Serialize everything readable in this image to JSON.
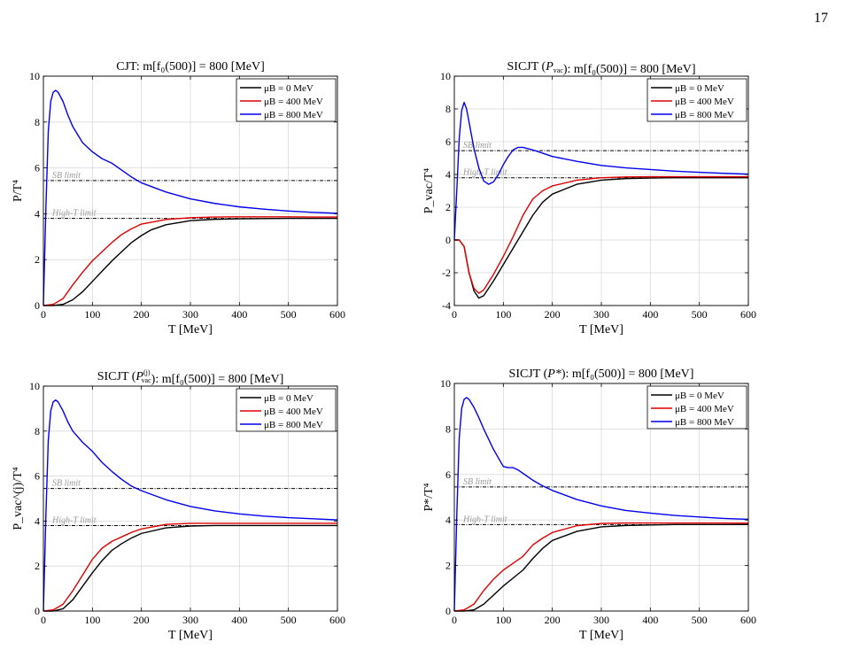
{
  "page": {
    "number": "17"
  },
  "colors": {
    "mu0": "#000000",
    "mu400": "#e00000",
    "mu800": "#0000ee",
    "limit": "#000000",
    "limit_label": "#999999",
    "grid": "#d9d9d9"
  },
  "reference_lines": {
    "sb_label": "SB limit",
    "sb_value": 5.45,
    "hight_label": "High-T limit",
    "hight_value": 3.8
  },
  "chart_data": [
    {
      "type": "line",
      "title": "CJT: m[f₀(500)] = 800 [MeV]",
      "xlabel": "T [MeV]",
      "ylabel": "P/T⁴",
      "xlim": [
        0,
        600
      ],
      "ylim": [
        0,
        10
      ],
      "xticks": [
        0,
        100,
        200,
        300,
        400,
        500,
        600
      ],
      "yticks": [
        0,
        2,
        4,
        6,
        8,
        10
      ],
      "ytick_labels": [
        "0",
        "2",
        "4",
        "6",
        "8",
        "10"
      ],
      "legend": "top-right",
      "series": [
        {
          "name": "μB = 0 MeV",
          "color": "#000000",
          "x": [
            0,
            20,
            40,
            60,
            80,
            100,
            120,
            140,
            160,
            180,
            200,
            220,
            250,
            300,
            350,
            400,
            450,
            500,
            550,
            600
          ],
          "y": [
            0,
            0,
            0.05,
            0.25,
            0.6,
            1.05,
            1.5,
            1.95,
            2.35,
            2.75,
            3.05,
            3.3,
            3.52,
            3.7,
            3.76,
            3.78,
            3.79,
            3.8,
            3.8,
            3.8
          ]
        },
        {
          "name": "μB = 400 MeV",
          "color": "#e00000",
          "x": [
            0,
            20,
            40,
            60,
            80,
            100,
            120,
            140,
            160,
            180,
            200,
            250,
            300,
            350,
            400,
            450,
            500,
            550,
            600
          ],
          "y": [
            0,
            0.05,
            0.3,
            0.9,
            1.45,
            1.95,
            2.35,
            2.75,
            3.1,
            3.35,
            3.55,
            3.75,
            3.83,
            3.86,
            3.87,
            3.87,
            3.87,
            3.86,
            3.86
          ]
        },
        {
          "name": "μB = 800 MeV",
          "color": "#0000ee",
          "x": [
            0,
            5,
            10,
            15,
            20,
            25,
            30,
            40,
            50,
            60,
            80,
            100,
            120,
            140,
            160,
            180,
            200,
            250,
            300,
            350,
            400,
            450,
            500,
            550,
            600
          ],
          "y": [
            0,
            4.2,
            7.6,
            8.9,
            9.3,
            9.38,
            9.3,
            8.9,
            8.3,
            7.8,
            7.1,
            6.7,
            6.4,
            6.2,
            5.9,
            5.6,
            5.35,
            4.95,
            4.65,
            4.45,
            4.3,
            4.2,
            4.12,
            4.06,
            4.02
          ]
        }
      ]
    },
    {
      "type": "line",
      "title": "SICJT (P_vac): m[f₀(500)] = 800 [MeV]",
      "xlabel": "T [MeV]",
      "ylabel": "P_vac/T⁴",
      "xlim": [
        0,
        600
      ],
      "ylim": [
        -4,
        10
      ],
      "xticks": [
        0,
        100,
        200,
        300,
        400,
        500,
        600
      ],
      "yticks": [
        -4,
        -2,
        0,
        2,
        4,
        6,
        8,
        10
      ],
      "ytick_labels": [
        "-4",
        "-2",
        "0",
        "2",
        "4",
        "6",
        "8",
        "10"
      ],
      "legend": "top-right",
      "series": [
        {
          "name": "μB = 0 MeV",
          "color": "#000000",
          "x": [
            0,
            10,
            20,
            30,
            40,
            50,
            60,
            80,
            100,
            120,
            140,
            160,
            180,
            200,
            250,
            300,
            350,
            400,
            450,
            500,
            550,
            600
          ],
          "y": [
            0,
            0,
            -0.4,
            -2.0,
            -3.1,
            -3.55,
            -3.4,
            -2.5,
            -1.5,
            -0.5,
            0.5,
            1.5,
            2.3,
            2.8,
            3.4,
            3.65,
            3.75,
            3.78,
            3.8,
            3.8,
            3.8,
            3.8
          ]
        },
        {
          "name": "μB = 400 MeV",
          "color": "#e00000",
          "x": [
            0,
            10,
            20,
            30,
            40,
            50,
            60,
            80,
            100,
            120,
            140,
            160,
            180,
            200,
            250,
            300,
            350,
            400,
            450,
            500,
            550,
            600
          ],
          "y": [
            0,
            0,
            -0.4,
            -2.0,
            -2.95,
            -3.25,
            -3.05,
            -2.1,
            -1.0,
            0.2,
            1.5,
            2.5,
            3.0,
            3.3,
            3.65,
            3.8,
            3.85,
            3.86,
            3.86,
            3.86,
            3.86,
            3.86
          ]
        },
        {
          "name": "μB = 800 MeV",
          "color": "#0000ee",
          "x": [
            0,
            5,
            10,
            15,
            20,
            25,
            30,
            35,
            40,
            50,
            60,
            70,
            80,
            90,
            100,
            110,
            120,
            130,
            140,
            160,
            180,
            200,
            250,
            300,
            350,
            400,
            450,
            500,
            550,
            600
          ],
          "y": [
            0,
            3.0,
            6.2,
            7.9,
            8.4,
            8.0,
            7.2,
            6.4,
            5.6,
            4.4,
            3.6,
            3.4,
            3.55,
            4.0,
            4.6,
            5.1,
            5.5,
            5.65,
            5.65,
            5.5,
            5.3,
            5.1,
            4.8,
            4.55,
            4.4,
            4.3,
            4.2,
            4.13,
            4.07,
            4.02
          ]
        }
      ]
    },
    {
      "type": "line",
      "title": "SICJT (P_vac^(j)): m[f₀(500)] = 800 [MeV]",
      "xlabel": "T [MeV]",
      "ylabel": "P_vac^(j)/T⁴",
      "xlim": [
        0,
        600
      ],
      "ylim": [
        0,
        10
      ],
      "xticks": [
        0,
        100,
        200,
        300,
        400,
        500,
        600
      ],
      "yticks": [
        0,
        2,
        4,
        6,
        8,
        10
      ],
      "ytick_labels": [
        "0",
        "2",
        "4",
        "6",
        "8",
        "10"
      ],
      "legend": "top-right",
      "series": [
        {
          "name": "μB = 0 MeV",
          "color": "#000000",
          "x": [
            0,
            20,
            40,
            60,
            80,
            100,
            120,
            140,
            160,
            180,
            200,
            250,
            300,
            350,
            400,
            450,
            500,
            550,
            600
          ],
          "y": [
            0,
            0,
            0.1,
            0.5,
            1.1,
            1.7,
            2.25,
            2.7,
            3.0,
            3.25,
            3.45,
            3.7,
            3.78,
            3.8,
            3.8,
            3.8,
            3.8,
            3.8,
            3.8
          ]
        },
        {
          "name": "μB = 400 MeV",
          "color": "#e00000",
          "x": [
            0,
            20,
            40,
            60,
            80,
            100,
            120,
            140,
            160,
            180,
            200,
            250,
            300,
            350,
            400,
            450,
            500,
            550,
            600
          ],
          "y": [
            0,
            0.05,
            0.3,
            0.9,
            1.6,
            2.3,
            2.8,
            3.1,
            3.3,
            3.5,
            3.65,
            3.85,
            3.9,
            3.9,
            3.9,
            3.9,
            3.9,
            3.9,
            3.9
          ]
        },
        {
          "name": "μB = 800 MeV",
          "color": "#0000ee",
          "x": [
            0,
            5,
            10,
            15,
            20,
            25,
            30,
            40,
            50,
            60,
            80,
            100,
            120,
            140,
            160,
            180,
            200,
            250,
            300,
            350,
            400,
            450,
            500,
            550,
            600
          ],
          "y": [
            0,
            4.2,
            7.6,
            8.9,
            9.3,
            9.38,
            9.3,
            8.9,
            8.4,
            8.0,
            7.5,
            7.1,
            6.6,
            6.2,
            5.85,
            5.55,
            5.35,
            4.95,
            4.65,
            4.45,
            4.32,
            4.22,
            4.15,
            4.1,
            4.05
          ]
        }
      ]
    },
    {
      "type": "line",
      "title": "SICJT (P*): m[f₀(500)] = 800 [MeV]",
      "xlabel": "T [MeV]",
      "ylabel": "P*/T⁴",
      "xlim": [
        0,
        600
      ],
      "ylim": [
        0,
        10
      ],
      "xticks": [
        0,
        100,
        200,
        300,
        400,
        500,
        600
      ],
      "yticks": [
        0,
        2,
        4,
        6,
        8,
        10
      ],
      "ytick_labels": [
        "0",
        "2",
        "4",
        "6",
        "8",
        "10"
      ],
      "legend": "top-right",
      "series": [
        {
          "name": "μB = 0 MeV",
          "color": "#000000",
          "x": [
            0,
            20,
            40,
            60,
            80,
            100,
            120,
            140,
            160,
            180,
            200,
            250,
            300,
            350,
            400,
            450,
            500,
            550,
            600
          ],
          "y": [
            0,
            0,
            0.05,
            0.3,
            0.7,
            1.1,
            1.45,
            1.8,
            2.3,
            2.75,
            3.1,
            3.5,
            3.7,
            3.76,
            3.78,
            3.8,
            3.8,
            3.8,
            3.8
          ]
        },
        {
          "name": "μB = 400 MeV",
          "color": "#e00000",
          "x": [
            0,
            20,
            40,
            60,
            80,
            100,
            120,
            140,
            160,
            180,
            200,
            250,
            300,
            350,
            400,
            450,
            500,
            550,
            600
          ],
          "y": [
            0,
            0.05,
            0.3,
            0.9,
            1.4,
            1.8,
            2.1,
            2.4,
            2.9,
            3.2,
            3.45,
            3.75,
            3.85,
            3.87,
            3.87,
            3.87,
            3.87,
            3.87,
            3.86
          ]
        },
        {
          "name": "μB = 800 MeV",
          "color": "#0000ee",
          "x": [
            0,
            5,
            10,
            15,
            20,
            25,
            30,
            40,
            50,
            60,
            80,
            100,
            110,
            120,
            130,
            140,
            160,
            180,
            200,
            250,
            300,
            350,
            400,
            450,
            500,
            550,
            600
          ],
          "y": [
            0,
            4.2,
            7.6,
            8.9,
            9.3,
            9.38,
            9.3,
            8.95,
            8.5,
            8.0,
            7.1,
            6.35,
            6.3,
            6.3,
            6.2,
            6.05,
            5.75,
            5.5,
            5.3,
            4.9,
            4.62,
            4.42,
            4.3,
            4.2,
            4.13,
            4.07,
            4.03
          ]
        }
      ]
    }
  ]
}
